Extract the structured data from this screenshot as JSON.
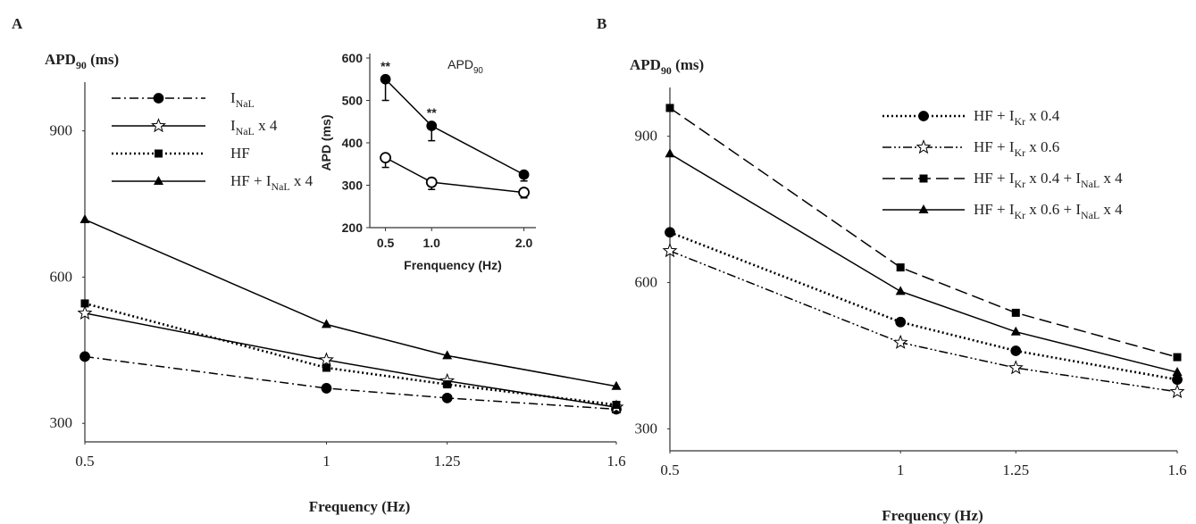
{
  "chart_data": [
    {
      "type": "line",
      "panel_label": "A",
      "ylabel": [
        "APD",
        "90",
        " (ms)"
      ],
      "xlabel": "Frequency (Hz)",
      "x": [
        0.5,
        1,
        1.25,
        1.6
      ],
      "xlim": [
        0.5,
        1.6
      ],
      "xticks": [
        0.5,
        1,
        1.25,
        1.6
      ],
      "ylim": [
        262,
        1000
      ],
      "yticks": [
        300,
        600,
        900
      ],
      "grid": false,
      "legend": "upper left",
      "series": [
        {
          "name": [
            "I",
            "NaL"
          ],
          "color": "#000000",
          "marker": "circle",
          "dash": "dashdot",
          "values": [
            437,
            372,
            352,
            329
          ]
        },
        {
          "name": [
            "I",
            "NaL",
            " x 4"
          ],
          "color": "#000000",
          "marker": "star",
          "dash": "solid",
          "values": [
            526,
            430,
            387,
            333
          ]
        },
        {
          "name": "HF",
          "color": "#000000",
          "marker": "square",
          "dash": "dotted",
          "values": [
            546,
            414,
            380,
            338
          ]
        },
        {
          "name": [
            "HF + I",
            "NaL",
            " x 4"
          ],
          "color": "#000000",
          "marker": "triangle",
          "dash": "solid",
          "values": [
            718,
            503,
            439,
            376
          ]
        }
      ]
    },
    {
      "type": "line",
      "title": [
        "APD",
        "90"
      ],
      "ylabel": "APD (ms)",
      "xlabel": "Frenquency (Hz)",
      "x": [
        0.5,
        1,
        2
      ],
      "xlim": [
        0.33,
        2.13
      ],
      "xticks": [
        0.5,
        {
          "value": 1,
          "label": "1.0"
        },
        {
          "value": 2,
          "label": "2.0"
        }
      ],
      "ylim": [
        200,
        600
      ],
      "yticks": [
        200,
        300,
        400,
        500,
        600
      ],
      "grid": false,
      "series": [
        {
          "color": "#000000",
          "marker": "circle",
          "dash": "solid",
          "values": [
            550,
            440,
            325
          ],
          "errors": [
            50,
            35,
            15
          ]
        },
        {
          "color": "#000000",
          "marker": "open-circle",
          "dash": "solid",
          "values": [
            365,
            307,
            283
          ],
          "errors": [
            23,
            17,
            13
          ]
        }
      ],
      "annotations": [
        {
          "text": "**",
          "x": 0.5
        },
        {
          "text": "**",
          "x": 1
        }
      ]
    },
    {
      "type": "line",
      "panel_label": "B",
      "ylabel": [
        "APD",
        "90",
        " (ms)"
      ],
      "xlabel": "Frequency (Hz)",
      "x": [
        0.5,
        1,
        1.25,
        1.6
      ],
      "xlim": [
        0.5,
        1.6
      ],
      "xticks": [
        0.5,
        1,
        1.25,
        1.6
      ],
      "ylim": [
        255,
        1000
      ],
      "yticks": [
        300,
        600,
        900
      ],
      "grid": false,
      "legend": "upper right",
      "series": [
        {
          "name": [
            "HF + I",
            "Kr",
            " x 0.4"
          ],
          "color": "#000000",
          "marker": "circle",
          "dash": "dotted",
          "values": [
            703,
            519,
            460,
            401
          ]
        },
        {
          "name": [
            "HF + I",
            "Kr",
            " x 0.6"
          ],
          "color": "#000000",
          "marker": "star",
          "dash": "dashdotdot",
          "values": [
            665,
            477,
            425,
            376
          ]
        },
        {
          "name": [
            "HF + I",
            "Kr",
            " x 0.4 + I",
            "NaL",
            " x 4"
          ],
          "color": "#000000",
          "marker": "square",
          "dash": "dashed",
          "values": [
            958,
            631,
            538,
            447
          ]
        },
        {
          "name": [
            "HF + I",
            "Kr",
            " x 0.6 + I",
            "NaL",
            " x 4"
          ],
          "color": "#000000",
          "marker": "triangle",
          "dash": "solid",
          "values": [
            864,
            582,
            499,
            416
          ]
        }
      ]
    }
  ]
}
